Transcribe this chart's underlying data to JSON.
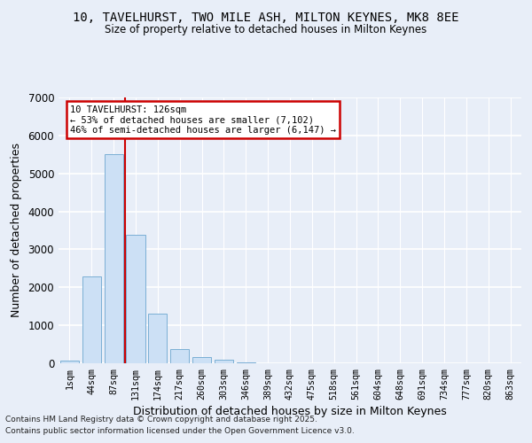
{
  "title_line1": "10, TAVELHURST, TWO MILE ASH, MILTON KEYNES, MK8 8EE",
  "title_line2": "Size of property relative to detached houses in Milton Keynes",
  "xlabel": "Distribution of detached houses by size in Milton Keynes",
  "ylabel": "Number of detached properties",
  "bar_color": "#cce0f5",
  "bar_edge_color": "#7bafd4",
  "categories": [
    "1sqm",
    "44sqm",
    "87sqm",
    "131sqm",
    "174sqm",
    "217sqm",
    "260sqm",
    "303sqm",
    "346sqm",
    "389sqm",
    "432sqm",
    "475sqm",
    "518sqm",
    "561sqm",
    "604sqm",
    "648sqm",
    "691sqm",
    "734sqm",
    "777sqm",
    "820sqm",
    "863sqm"
  ],
  "values": [
    60,
    2280,
    5500,
    3380,
    1300,
    370,
    175,
    90,
    35,
    10,
    5,
    2,
    1,
    0,
    0,
    0,
    0,
    0,
    0,
    0,
    0
  ],
  "ylim": [
    0,
    7000
  ],
  "yticks": [
    0,
    1000,
    2000,
    3000,
    4000,
    5000,
    6000,
    7000
  ],
  "annotation_title": "10 TAVELHURST: 126sqm",
  "annotation_line2": "← 53% of detached houses are smaller (7,102)",
  "annotation_line3": "46% of semi-detached houses are larger (6,147) →",
  "annotation_box_color": "#ffffff",
  "annotation_box_edge_color": "#cc0000",
  "vline_color": "#cc0000",
  "vline_x": 2.5,
  "background_color": "#e8eef8",
  "grid_color": "#ffffff",
  "footnote_line1": "Contains HM Land Registry data © Crown copyright and database right 2025.",
  "footnote_line2": "Contains public sector information licensed under the Open Government Licence v3.0."
}
